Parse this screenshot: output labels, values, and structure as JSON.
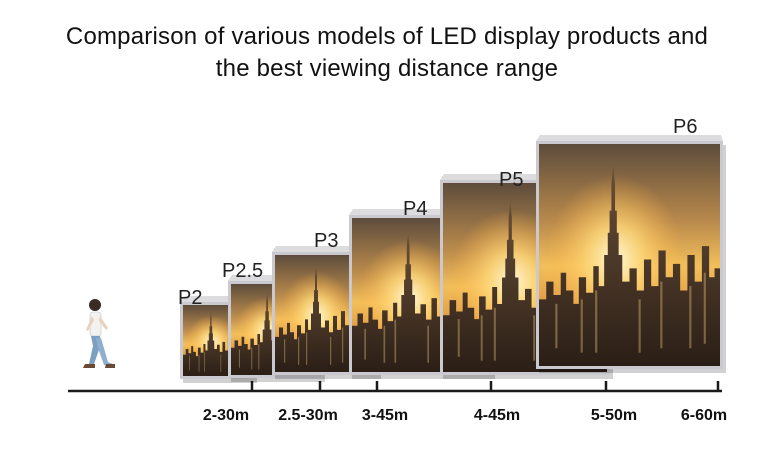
{
  "title": {
    "line1": "Comparison of various models of LED display products and",
    "line2": "the best viewing distance range"
  },
  "models": [
    {
      "name": "P2",
      "distance": "2-30m"
    },
    {
      "name": "P2.5",
      "distance": "2.5-30m"
    },
    {
      "name": "P3",
      "distance": "3-45m"
    },
    {
      "name": "P4",
      "distance": "4-45m"
    },
    {
      "name": "P5",
      "distance": "5-50m"
    },
    {
      "name": "P6",
      "distance": "6-60m"
    }
  ],
  "colors": {
    "sky_top": "#6b5a48",
    "sky_glow": "#f6c15a",
    "sun": "#fff2c0",
    "city": "#3d2f25",
    "frame": "#c9c9cf",
    "baseline": "#1a1a1a"
  },
  "icons": {
    "person": "walking-man-icon"
  }
}
